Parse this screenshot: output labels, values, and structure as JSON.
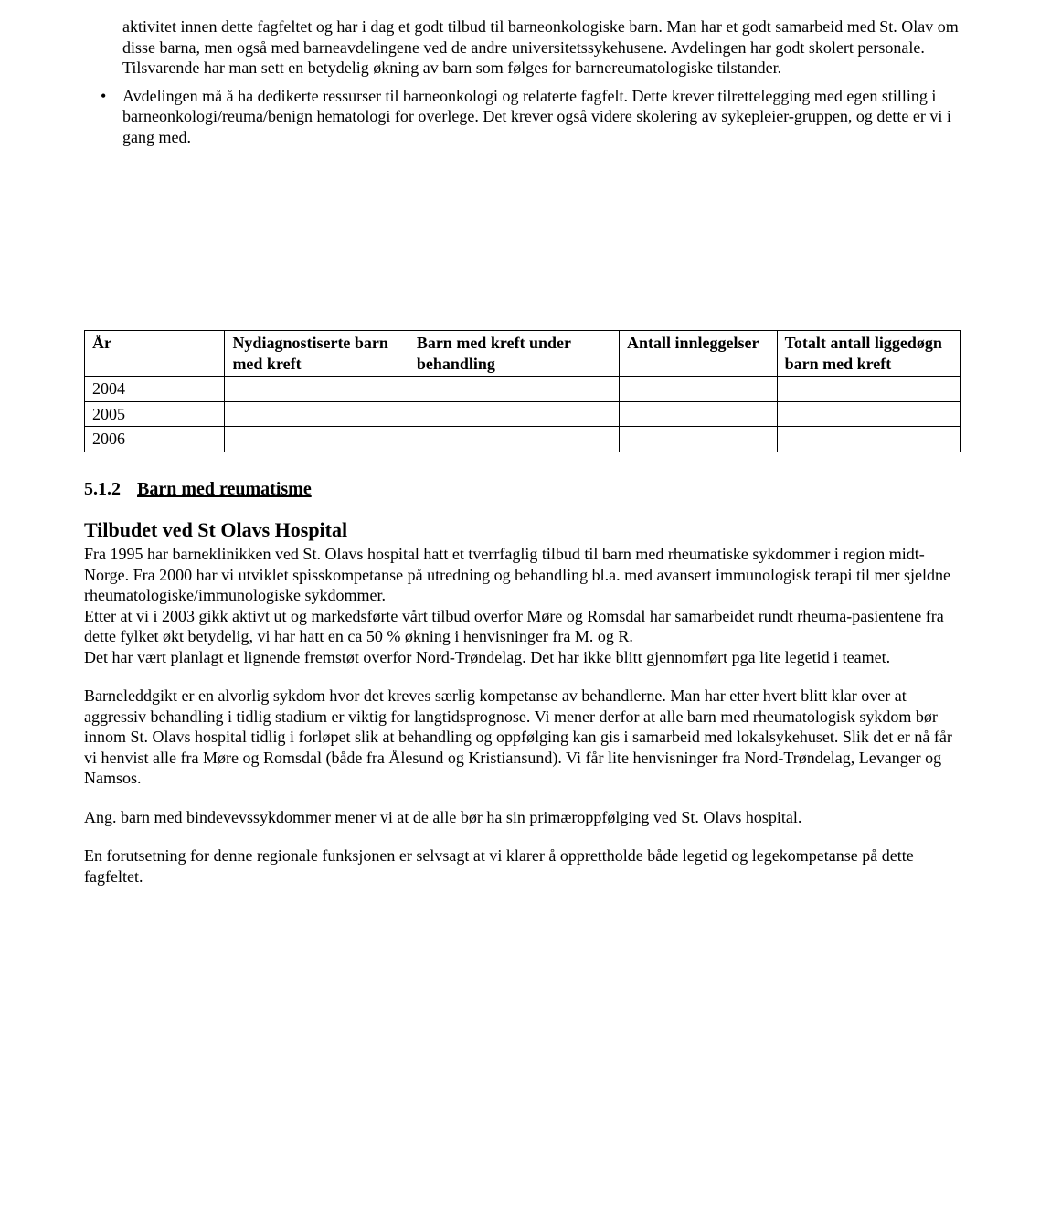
{
  "intro_paragraph": "aktivitet innen dette fagfeltet og har i dag et godt tilbud til barneonkologiske barn. Man har et godt samarbeid med St. Olav om disse barna, men også med barneavdelingene ved de andre universitetssykehusene. Avdelingen har godt skolert personale. Tilsvarende har man sett en betydelig økning av barn som følges for barnereumatologiske tilstander.",
  "bullet_text": "Avdelingen må å ha dedikerte ressurser til barneonkologi og relaterte fagfelt. Dette krever tilrettelegging med egen stilling i barneonkologi/reuma/benign hematologi for overlege. Det krever også videre skolering av sykepleier-gruppen, og dette er vi i gang med.",
  "table": {
    "headers": {
      "year": "År",
      "col_a": "Nydiagnostiserte barn med kreft",
      "col_b": "Barn med kreft under behandling",
      "col_c": "Antall innleggelser",
      "col_d": "Totalt antall liggedøgn barn med kreft"
    },
    "rows": [
      {
        "year": "2004",
        "a": "",
        "b": "",
        "c": "",
        "d": ""
      },
      {
        "year": "2005",
        "a": "",
        "b": "",
        "c": "",
        "d": ""
      },
      {
        "year": "2006",
        "a": "",
        "b": "",
        "c": "",
        "d": ""
      }
    ]
  },
  "section": {
    "number": "5.1.2",
    "title": "Barn med reumatisme"
  },
  "subsection_title": "Tilbudet ved St Olavs Hospital",
  "paragraphs": {
    "p1": "Fra 1995 har barneklinikken ved St. Olavs hospital hatt et tverrfaglig tilbud til barn med rheumatiske sykdommer i region midt-Norge. Fra 2000 har vi utviklet spisskompetanse på utredning og behandling bl.a. med avansert immunologisk terapi til mer sjeldne rheumatologiske/immunologiske sykdommer.",
    "p2": "Etter at vi i 2003 gikk aktivt ut og markedsførte vårt tilbud overfor Møre og Romsdal har samarbeidet rundt rheuma-pasientene fra dette fylket økt betydelig, vi har hatt en ca 50 % økning i henvisninger fra M. og R.",
    "p3": "Det har vært planlagt et lignende fremstøt overfor Nord-Trøndelag. Det har ikke blitt gjennomført pga lite legetid i teamet.",
    "p4": "Barneleddgikt er en alvorlig sykdom hvor det kreves særlig kompetanse av behandlerne. Man har etter hvert blitt klar over at aggressiv behandling i tidlig stadium er viktig for langtidsprognose. Vi mener derfor at alle barn med rheumatologisk sykdom bør innom St. Olavs hospital tidlig i forløpet slik at behandling og oppfølging kan gis i samarbeid med lokalsykehuset. Slik det er nå får vi henvist alle fra Møre og Romsdal (både fra Ålesund og Kristiansund). Vi får lite henvisninger fra Nord-Trøndelag, Levanger og Namsos.",
    "p5": "Ang. barn med bindevevssykdommer mener vi at de alle bør ha sin primæroppfølging ved St. Olavs hospital.",
    "p6": "En forutsetning for denne regionale funksjonen er selvsagt at vi klarer å opprettholde både legetid og legekompetanse på dette fagfeltet."
  }
}
